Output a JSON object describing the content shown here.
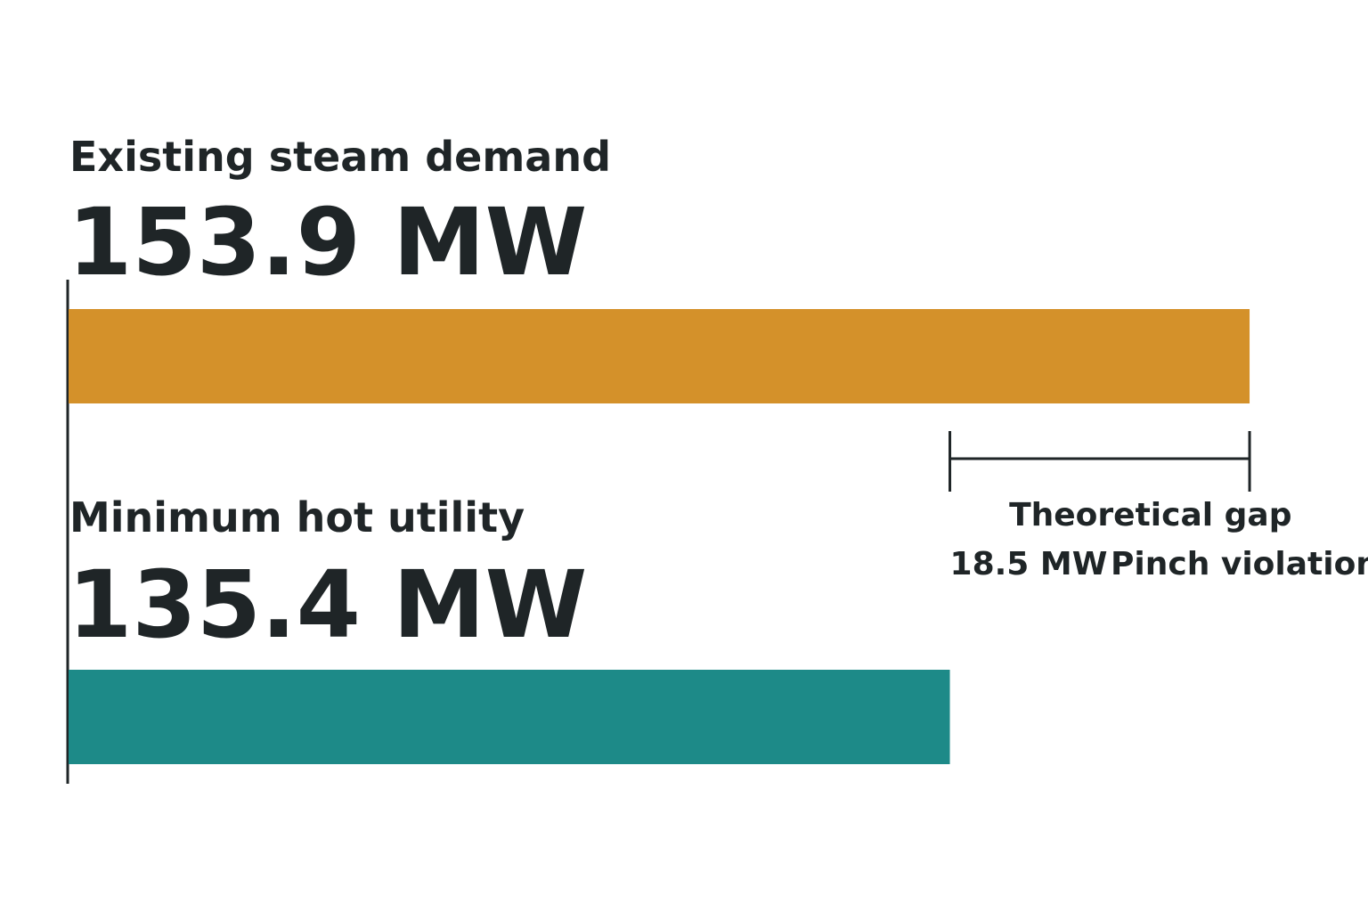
{
  "chart_data": {
    "type": "bar",
    "categories": [
      "Existing steam demand",
      "Minimum hot utility"
    ],
    "values": [
      153.9,
      135.4
    ],
    "value_labels": [
      "153.9 MW",
      "135.4 MW"
    ],
    "colors": [
      "#d4912a",
      "#1d8a88"
    ],
    "xlim": [
      81,
      160
    ],
    "gap": {
      "title": "Theoretical gap",
      "value": 18.5,
      "label": "18.5 MW",
      "note": "Pinch violations"
    }
  }
}
